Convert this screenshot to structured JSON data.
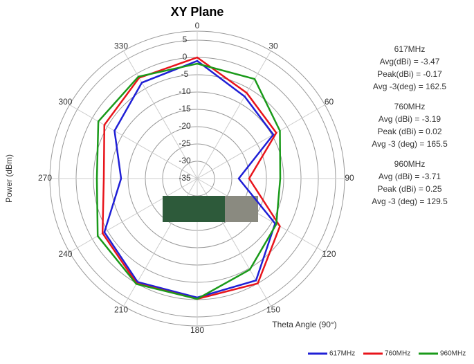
{
  "chart_data": {
    "type": "polar",
    "title": "XY Plane",
    "y_label": "Power (dBm)",
    "x_label": "Theta Angle (90°)",
    "theta": [
      0,
      30,
      60,
      90,
      120,
      150,
      180,
      210,
      240,
      270,
      300,
      330
    ],
    "theta_ticks": [
      0,
      30,
      60,
      90,
      120,
      150,
      180,
      210,
      240,
      270,
      300,
      330
    ],
    "rlim": [
      -35,
      5
    ],
    "rticks": [
      -35,
      -30,
      -25,
      -20,
      -15,
      -10,
      -5,
      0,
      5
    ],
    "grid": true,
    "legend": "bottom-right",
    "series": [
      {
        "name": "617MHz",
        "color": "#1f1fd6",
        "values": [
          -1,
          -7.6,
          -9.6,
          -23,
          -9,
          -1,
          -0.6,
          -0.5,
          -4,
          -13,
          -7.4,
          -3
        ]
      },
      {
        "name": "760MHz",
        "color": "#e8141b",
        "values": [
          0,
          -6.4,
          -8.6,
          -20,
          -7.4,
          0,
          -0.2,
          0,
          -3.4,
          -8,
          -4,
          -1.4
        ]
      },
      {
        "name": "960MHz",
        "color": "#1a9a1a",
        "values": [
          -1.8,
          -1.8,
          -7.4,
          -11,
          -8.6,
          -4.6,
          -0.2,
          0.2,
          -1.8,
          -6,
          -2,
          -1
        ]
      }
    ],
    "annotations": [
      [
        "617MHz",
        "Avg(dBi) = -3.47",
        "Peak(dBi) = -0.17",
        "Avg -3(deg) = 162.5"
      ],
      [
        "760MHz",
        "Avg (dBi) =  -3.19",
        "Peak (dBi) =  0.02",
        "Avg -3 (deg) =  165.5"
      ],
      [
        "960MHz",
        "Avg (dBi) =  -3.71",
        "Peak (dBi) =  0.25",
        "Avg -3 (deg) =  129.5"
      ]
    ]
  }
}
